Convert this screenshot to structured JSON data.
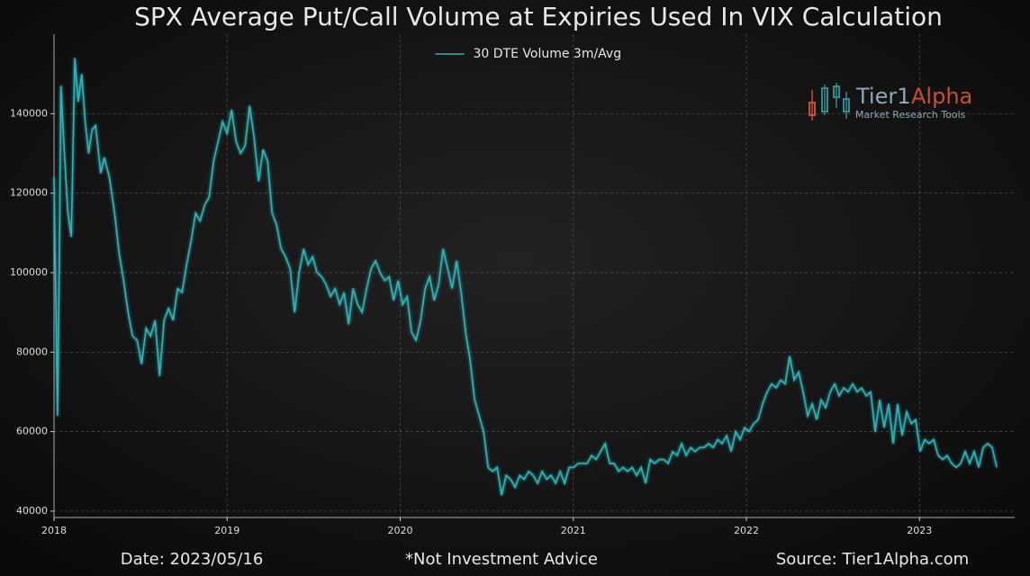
{
  "chart_data": {
    "type": "line",
    "title": "SPX Average Put/Call Volume at Expiries Used In VIX Calculation",
    "logo": {
      "name1": "Tier1",
      "name2": "Alpha",
      "tagline": "Market  Research Tools"
    },
    "footer": {
      "left": "Date: 2023/05/16",
      "center": "*Not Investment Advice",
      "right": "Source: Tier1Alpha.com"
    },
    "legend": "upper center",
    "grid": true,
    "xlim": [
      2018,
      2023.55
    ],
    "xticks": [
      2018,
      2019,
      2020,
      2021,
      2022,
      2023
    ],
    "ylim": [
      38400,
      160000
    ],
    "yticks": [
      40000,
      60000,
      80000,
      100000,
      120000,
      140000
    ],
    "x": [
      2018,
      2018.02,
      2018.03,
      2018.04,
      2018.06,
      2018.08,
      2018.1,
      2018.12,
      2018.14,
      2018.16,
      2018.18,
      2018.2,
      2018.22,
      2018.24,
      2018.27,
      2018.29,
      2018.32,
      2018.35,
      2018.376,
      2018.402,
      2018.428,
      2018.454,
      2018.48,
      2018.506,
      2018.532,
      2018.558,
      2018.584,
      2018.61,
      2018.636,
      2018.662,
      2018.688,
      2018.714,
      2018.74,
      2018.766,
      2018.792,
      2018.818,
      2018.844,
      2018.87,
      2018.896,
      2018.922,
      2018.948,
      2018.974,
      2019.0,
      2019.026,
      2019.052,
      2019.078,
      2019.104,
      2019.13,
      2019.156,
      2019.182,
      2019.208,
      2019.234,
      2019.26,
      2019.286,
      2019.312,
      2019.338,
      2019.364,
      2019.39,
      2019.416,
      2019.442,
      2019.468,
      2019.494,
      2019.52,
      2019.546,
      2019.572,
      2019.598,
      2019.624,
      2019.65,
      2019.676,
      2019.702,
      2019.728,
      2019.754,
      2019.78,
      2019.806,
      2019.832,
      2019.858,
      2019.884,
      2019.91,
      2019.936,
      2019.962,
      2019.988,
      2020.014,
      2020.04,
      2020.066,
      2020.092,
      2020.118,
      2020.144,
      2020.17,
      2020.196,
      2020.222,
      2020.248,
      2020.274,
      2020.3,
      2020.326,
      2020.352,
      2020.378,
      2020.404,
      2020.43,
      2020.456,
      2020.482,
      2020.508,
      2020.534,
      2020.56,
      2020.586,
      2020.612,
      2020.638,
      2020.664,
      2020.69,
      2020.716,
      2020.742,
      2020.768,
      2020.794,
      2020.82,
      2020.846,
      2020.872,
      2020.898,
      2020.924,
      2020.95,
      2020.976,
      2021.002,
      2021.028,
      2021.054,
      2021.08,
      2021.106,
      2021.132,
      2021.158,
      2021.184,
      2021.21,
      2021.236,
      2021.262,
      2021.288,
      2021.314,
      2021.34,
      2021.366,
      2021.392,
      2021.418,
      2021.444,
      2021.47,
      2021.496,
      2021.522,
      2021.548,
      2021.574,
      2021.6,
      2021.626,
      2021.652,
      2021.678,
      2021.704,
      2021.73,
      2021.756,
      2021.782,
      2021.808,
      2021.834,
      2021.86,
      2021.886,
      2021.912,
      2021.938,
      2021.964,
      2021.99,
      2022.016,
      2022.042,
      2022.068,
      2022.094,
      2022.12,
      2022.146,
      2022.172,
      2022.198,
      2022.224,
      2022.25,
      2022.276,
      2022.302,
      2022.328,
      2022.354,
      2022.38,
      2022.406,
      2022.432,
      2022.458,
      2022.484,
      2022.51,
      2022.536,
      2022.562,
      2022.588,
      2022.614,
      2022.64,
      2022.666,
      2022.692,
      2022.718,
      2022.744,
      2022.77,
      2022.796,
      2022.822,
      2022.848,
      2022.874,
      2022.9,
      2022.926,
      2022.952,
      2022.978,
      2023.004,
      2023.03,
      2023.056,
      2023.082,
      2023.108,
      2023.134,
      2023.16,
      2023.186,
      2023.212,
      2023.238,
      2023.264,
      2023.29,
      2023.316,
      2023.342,
      2023.368,
      2023.394,
      2023.42,
      2023.446
    ],
    "series": [
      {
        "name": "30 DTE Volume 3m/Avg",
        "color": "#2fb3b8",
        "values": [
          124000,
          64000,
          100000,
          147000,
          130000,
          115000,
          109000,
          154000,
          143000,
          150000,
          138000,
          130000,
          136000,
          137000,
          125000,
          129000,
          124000,
          115000,
          105000,
          98000,
          90000,
          84000,
          83000,
          77000,
          86000,
          84000,
          88000,
          74000,
          88000,
          91000,
          88000,
          96000,
          95000,
          102000,
          108000,
          115000,
          113000,
          117000,
          119000,
          128000,
          133000,
          138000,
          135000,
          141000,
          133000,
          130000,
          132000,
          142000,
          134000,
          123000,
          131000,
          128000,
          115000,
          112000,
          106000,
          104000,
          101000,
          90000,
          100000,
          106000,
          102000,
          104000,
          100000,
          99000,
          97000,
          94000,
          96000,
          92000,
          95000,
          87000,
          96000,
          92000,
          90000,
          96000,
          101000,
          103000,
          100000,
          98000,
          99000,
          93000,
          98000,
          92000,
          94000,
          85000,
          83000,
          88000,
          96000,
          99000,
          93000,
          97000,
          106000,
          101000,
          96000,
          103000,
          95000,
          85000,
          78000,
          68000,
          64000,
          60000,
          51000,
          50000,
          51000,
          44000,
          49000,
          48000,
          46000,
          49000,
          48000,
          50000,
          49000,
          47000,
          50000,
          48000,
          49000,
          47000,
          50000,
          47000,
          51000,
          51000,
          52000,
          52000,
          52000,
          54000,
          53000,
          55000,
          57000,
          52000,
          52000,
          50000,
          51000,
          50000,
          51000,
          49000,
          51000,
          47000,
          53000,
          52000,
          53000,
          53000,
          52000,
          55000,
          54000,
          57000,
          54000,
          56000,
          55000,
          56000,
          56000,
          57000,
          56000,
          58000,
          57000,
          59000,
          55000,
          60000,
          58000,
          61000,
          60000,
          62000,
          63000,
          67000,
          70000,
          72000,
          71000,
          73000,
          72000,
          79000,
          73000,
          75000,
          70000,
          64000,
          67000,
          63000,
          68000,
          66000,
          70000,
          72000,
          69000,
          71000,
          70000,
          72000,
          70000,
          71000,
          69000,
          70000,
          60000,
          68000,
          61000,
          67000,
          57000,
          67000,
          59000,
          65000,
          62000,
          63000,
          55000,
          58000,
          57000,
          58000,
          54000,
          53000,
          54000,
          52000,
          51000,
          52000,
          55000,
          52000,
          55000,
          51000,
          56000,
          57000,
          56000,
          51000
        ]
      }
    ]
  }
}
